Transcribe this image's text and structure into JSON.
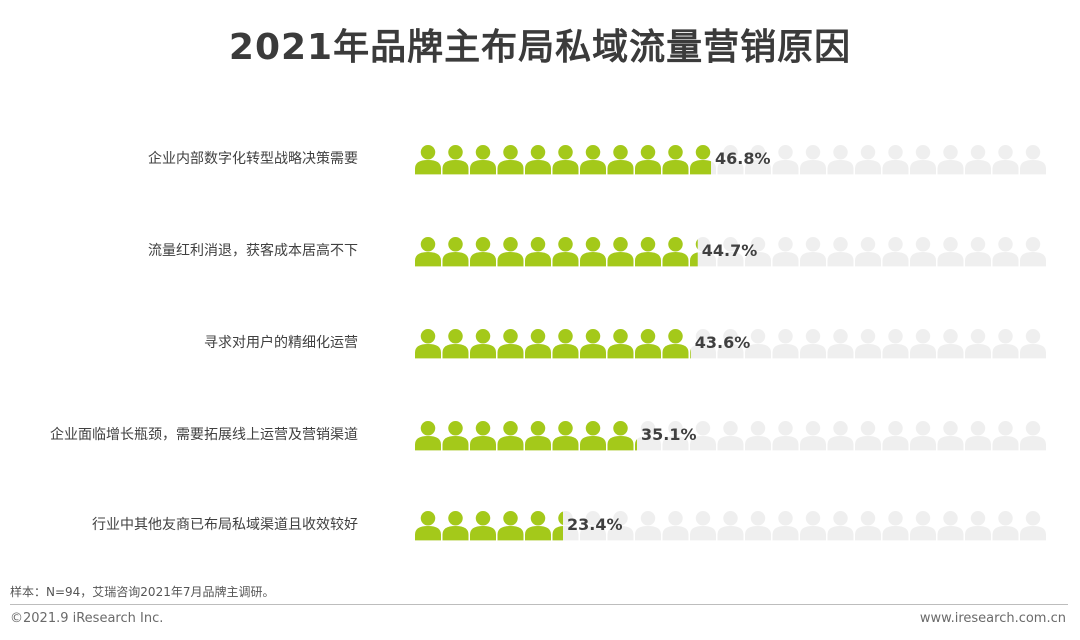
{
  "title": "2021年品牌主布局私域流量营销原因",
  "chart_data": {
    "type": "bar",
    "style": "pictogram",
    "title": "2021年品牌主布局私域流量营销原因",
    "categories": [
      "企业内部数字化转型战略决策需要",
      "流量红利消退，获客成本居高不下",
      "寻求对用户的精细化运营",
      "企业面临增长瓶颈，需要拓展线上运营及营销渠道",
      "行业中其他友商已布局私域渠道且收效较好"
    ],
    "values": [
      46.8,
      44.7,
      43.6,
      35.1,
      23.4
    ],
    "value_labels": [
      "46.8%",
      "44.7%",
      "43.6%",
      "35.1%",
      "23.4%"
    ],
    "xlim": [
      0,
      100
    ],
    "icons_per_row": 23,
    "icon": "person-icon",
    "colors": {
      "filled": "#a4c91a",
      "empty": "#efefef"
    }
  },
  "footnote": "样本：N=94，艾瑞咨询2021年7月品牌主调研。",
  "footer": {
    "copyright": "©2021.9 iResearch Inc.",
    "website": "www.iresearch.com.cn"
  }
}
